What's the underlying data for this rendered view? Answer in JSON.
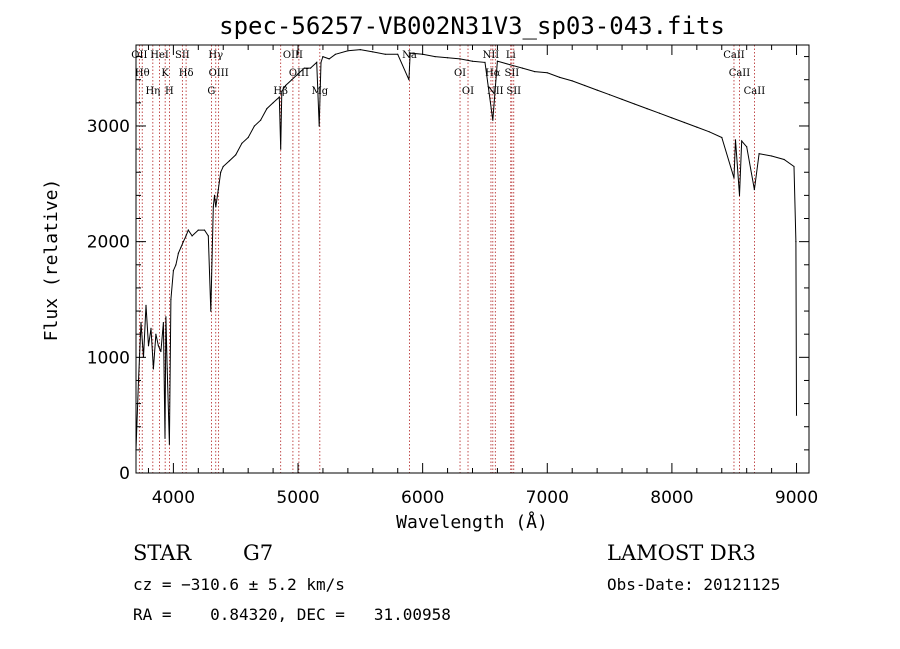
{
  "chart_data": {
    "type": "line",
    "title": "spec-56257-VB002N31V3_sp03-043.fits",
    "xlabel": "Wavelength (Å)",
    "ylabel": "Flux (relative)",
    "xlim": [
      3700,
      9100
    ],
    "ylim": [
      0,
      3700
    ],
    "xticks": [
      4000,
      5000,
      6000,
      7000,
      8000,
      9000
    ],
    "yticks": [
      0,
      1000,
      2000,
      3000
    ],
    "grid": false,
    "series": [
      {
        "name": "flux",
        "x": [
          3700,
          3720,
          3740,
          3760,
          3780,
          3800,
          3820,
          3840,
          3860,
          3880,
          3900,
          3920,
          3933,
          3940,
          3950,
          3968,
          3980,
          4000,
          4020,
          4040,
          4060,
          4080,
          4101,
          4120,
          4150,
          4200,
          4250,
          4280,
          4300,
          4320,
          4330,
          4340,
          4360,
          4380,
          4400,
          4450,
          4500,
          4550,
          4600,
          4650,
          4700,
          4750,
          4800,
          4850,
          4861,
          4870,
          4900,
          4950,
          5000,
          5050,
          5100,
          5150,
          5170,
          5184,
          5200,
          5250,
          5300,
          5400,
          5500,
          5600,
          5700,
          5800,
          5890,
          5900,
          6000,
          6100,
          6200,
          6300,
          6400,
          6500,
          6563,
          6600,
          6700,
          6800,
          6900,
          7000,
          7100,
          7200,
          7300,
          7400,
          7500,
          7600,
          7700,
          7800,
          7900,
          8000,
          8100,
          8200,
          8300,
          8400,
          8498,
          8510,
          8542,
          8560,
          8600,
          8662,
          8700,
          8800,
          8900,
          8980,
          8995,
          9000
        ],
        "y": [
          200,
          800,
          1300,
          1000,
          1450,
          1100,
          1250,
          900,
          1200,
          1100,
          1050,
          1300,
          300,
          1350,
          900,
          250,
          1500,
          1750,
          1800,
          1900,
          1950,
          2000,
          2050,
          2100,
          2050,
          2100,
          2100,
          2050,
          1400,
          2300,
          2400,
          2300,
          2450,
          2600,
          2650,
          2700,
          2750,
          2850,
          2900,
          3000,
          3050,
          3150,
          3200,
          3250,
          2800,
          3300,
          3350,
          3400,
          3450,
          3500,
          3500,
          3550,
          3000,
          3550,
          3600,
          3580,
          3620,
          3650,
          3660,
          3640,
          3620,
          3620,
          3400,
          3630,
          3620,
          3600,
          3590,
          3580,
          3560,
          3550,
          3050,
          3560,
          3530,
          3500,
          3470,
          3460,
          3420,
          3390,
          3350,
          3310,
          3270,
          3230,
          3190,
          3150,
          3110,
          3070,
          3030,
          2990,
          2950,
          2900,
          2550,
          2880,
          2400,
          2870,
          2820,
          2450,
          2760,
          2740,
          2710,
          2650,
          2000,
          500
        ]
      }
    ],
    "lines": [
      {
        "name": "OII",
        "wavelength": 3727
      },
      {
        "name": "Hθ",
        "wavelength": 3750
      },
      {
        "name": "Hη",
        "wavelength": 3835
      },
      {
        "name": "HeI",
        "wavelength": 3889
      },
      {
        "name": "K",
        "wavelength": 3934
      },
      {
        "name": "H",
        "wavelength": 3968
      },
      {
        "name": "SII",
        "wavelength": 4072
      },
      {
        "name": "Hδ",
        "wavelength": 4102
      },
      {
        "name": "G",
        "wavelength": 4305
      },
      {
        "name": "Hγ",
        "wavelength": 4340
      },
      {
        "name": "OIII",
        "wavelength": 4363
      },
      {
        "name": "Hβ",
        "wavelength": 4861
      },
      {
        "name": "OIII",
        "wavelength": 4959
      },
      {
        "name": "OIII",
        "wavelength": 5007
      },
      {
        "name": "Mg",
        "wavelength": 5175
      },
      {
        "name": "Na",
        "wavelength": 5894
      },
      {
        "name": "OI",
        "wavelength": 6300
      },
      {
        "name": "OI",
        "wavelength": 6364
      },
      {
        "name": "NII",
        "wavelength": 6548
      },
      {
        "name": "Hα",
        "wavelength": 6563
      },
      {
        "name": "NII",
        "wavelength": 6583
      },
      {
        "name": "Li",
        "wavelength": 6707
      },
      {
        "name": "SII",
        "wavelength": 6716
      },
      {
        "name": "SII",
        "wavelength": 6731
      },
      {
        "name": "CaII",
        "wavelength": 8498
      },
      {
        "name": "CaII",
        "wavelength": 8542
      },
      {
        "name": "CaII",
        "wavelength": 8662
      }
    ]
  },
  "info": {
    "object_class": "STAR",
    "subclass": "G7",
    "survey": "LAMOST DR3",
    "cz": "cz = −310.6 ± 5.2 km/s",
    "obs_date": "Obs-Date: 20121125",
    "radec": "RA =    0.84320, DEC =   31.00958"
  },
  "colors": {
    "line_marker": "#b22222",
    "spectrum": "#000000"
  }
}
